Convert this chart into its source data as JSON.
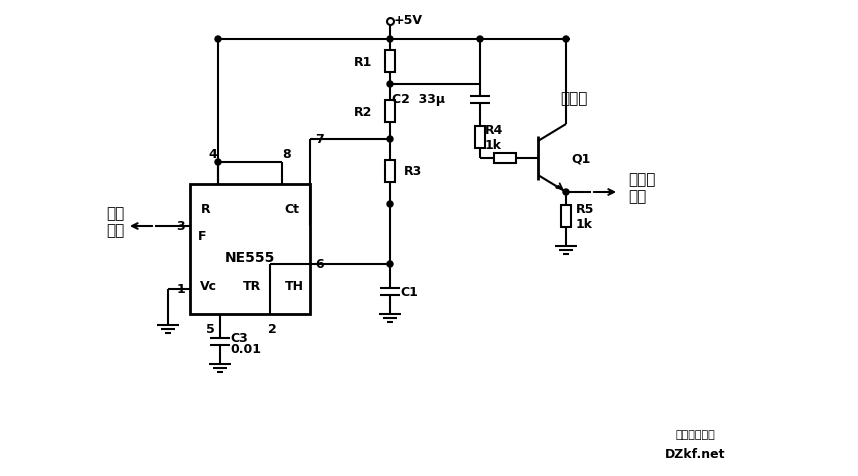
{
  "background_color": "#ffffff",
  "fig_width": 8.58,
  "fig_height": 4.77,
  "dpi": 100,
  "labels": {
    "vcc": "+5V",
    "c2_label": "C2  33μ",
    "tantalum": "鈕电容",
    "r1": "R1",
    "r2": "R2",
    "r3": "R3",
    "r4": "R4\n1k",
    "r5": "R5\n1k",
    "c1": "C1",
    "c3": "C3",
    "c3_val": "0.01",
    "q1": "Q1",
    "ne555": "NE555",
    "pin_r": "R",
    "pin_ct": "Ct",
    "pin_f": "F",
    "pin_vc": "Vc",
    "pin_tr": "TR",
    "pin_th": "TH",
    "pin1": "1",
    "pin2": "2",
    "pin3": "3",
    "pin4": "4",
    "pin5": "5",
    "pin6": "6",
    "pin7": "7",
    "pin8": "8",
    "pulse_out": "脉冲\n输出",
    "saw_out": "锯齿波\n输出",
    "watermark1": "电子开发社区",
    "watermark2": "DZkf.net"
  }
}
